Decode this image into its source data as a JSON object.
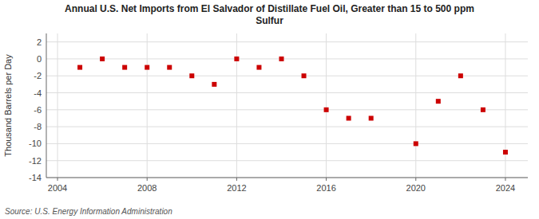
{
  "chart_data": {
    "type": "scatter",
    "title": "Annual U.S. Net Imports from El Salvador of Distillate Fuel Oil, Greater than 15 to 500 ppm\nSulfur",
    "ylabel": "Thousand Barrels per Day",
    "source": "Source: U.S. Energy Information Administration",
    "x": [
      2005,
      2006,
      2007,
      2008,
      2009,
      2010,
      2011,
      2012,
      2013,
      2014,
      2015,
      2016,
      2017,
      2018,
      2020,
      2021,
      2022,
      2023,
      2024
    ],
    "values": [
      -1.0,
      0.0,
      -1.0,
      -1.0,
      -1.0,
      -2.0,
      -3.0,
      0.0,
      -1.0,
      0.0,
      -2.0,
      -6.0,
      -7.0,
      -7.0,
      -10.0,
      -5.0,
      -2.0,
      -6.0,
      -11.0
    ],
    "color": "#cc0000",
    "marker": "square",
    "xlim": [
      2003.5,
      2025.0
    ],
    "ylim": [
      -14,
      3
    ],
    "xticks": [
      2004,
      2008,
      2012,
      2016,
      2020,
      2024
    ],
    "yticks": [
      2,
      0,
      -2,
      -4,
      -6,
      -8,
      -10,
      -12,
      -14
    ],
    "grid": true
  }
}
